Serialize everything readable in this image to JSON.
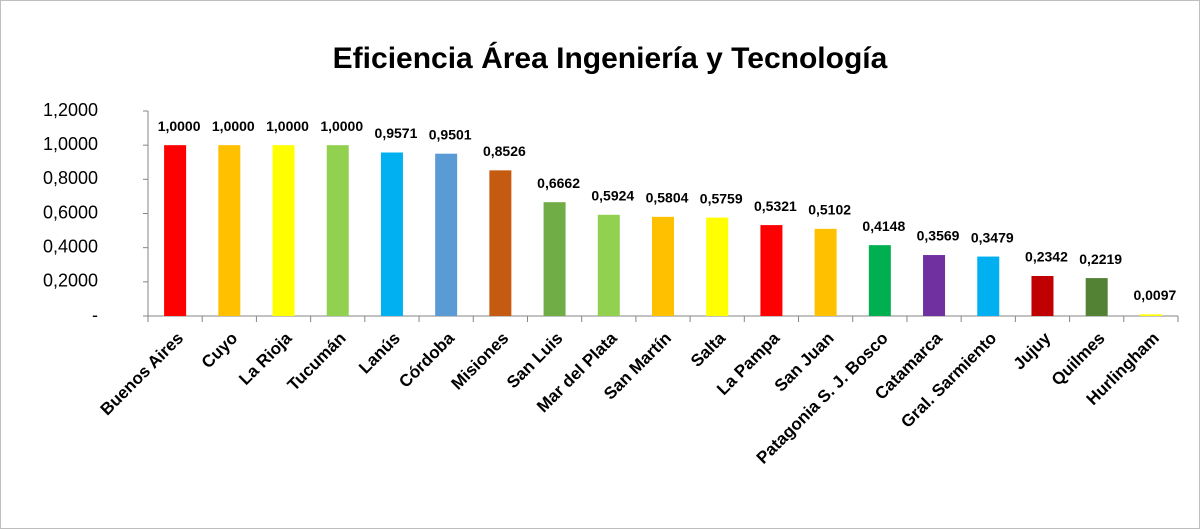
{
  "chart_data": {
    "type": "bar",
    "title": "Eficiencia Área Ingeniería y Tecnología",
    "categories": [
      "Buenos Aires",
      "Cuyo",
      "La Rioja",
      "Tucumán",
      "Lanús",
      "Córdoba",
      "Misiones",
      "San Luis",
      "Mar del Plata",
      "San Martín",
      "Salta",
      "La Pampa",
      "San Juan",
      "Patagonia S. J. Bosco",
      "Catamarca",
      "Gral. Sarmiento",
      "Jujuy",
      "Quilmes",
      "Hurlingham"
    ],
    "values": [
      1,
      1,
      1,
      1,
      0.9571,
      0.9501,
      0.8526,
      0.6662,
      0.5924,
      0.5804,
      0.5759,
      0.5321,
      0.5102,
      0.4148,
      0.3569,
      0.3479,
      0.2342,
      0.2219,
      0.0097
    ],
    "value_labels": [
      "1,0000",
      "1,0000",
      "1,0000",
      "1,0000",
      "0,9571",
      "0,9501",
      "0,8526",
      "0,6662",
      "0,5924",
      "0,5804",
      "0,5759",
      "0,5321",
      "0,5102",
      "0,4148",
      "0,3569",
      "0,3479",
      "0,2342",
      "0,2219",
      "0,0097"
    ],
    "colors": [
      "#ff0000",
      "#ffc000",
      "#ffff00",
      "#92d050",
      "#00b0f0",
      "#5b9bd5",
      "#c55a11",
      "#70ad47",
      "#92d050",
      "#ffc000",
      "#ffff00",
      "#ff0000",
      "#ffc000",
      "#00b050",
      "#7030a0",
      "#00b0f0",
      "#c00000",
      "#548235",
      "#ffff00"
    ],
    "ylim": [
      0,
      1.2
    ],
    "yticks": [
      {
        "value": 0,
        "label": "-"
      },
      {
        "value": 0.2,
        "label": "0,2000"
      },
      {
        "value": 0.4,
        "label": "0,4000"
      },
      {
        "value": 0.6,
        "label": "0,6000"
      },
      {
        "value": 0.8,
        "label": "0,8000"
      },
      {
        "value": 1,
        "label": "1,0000"
      },
      {
        "value": 1.2,
        "label": "1,2000"
      }
    ],
    "grid": false
  }
}
